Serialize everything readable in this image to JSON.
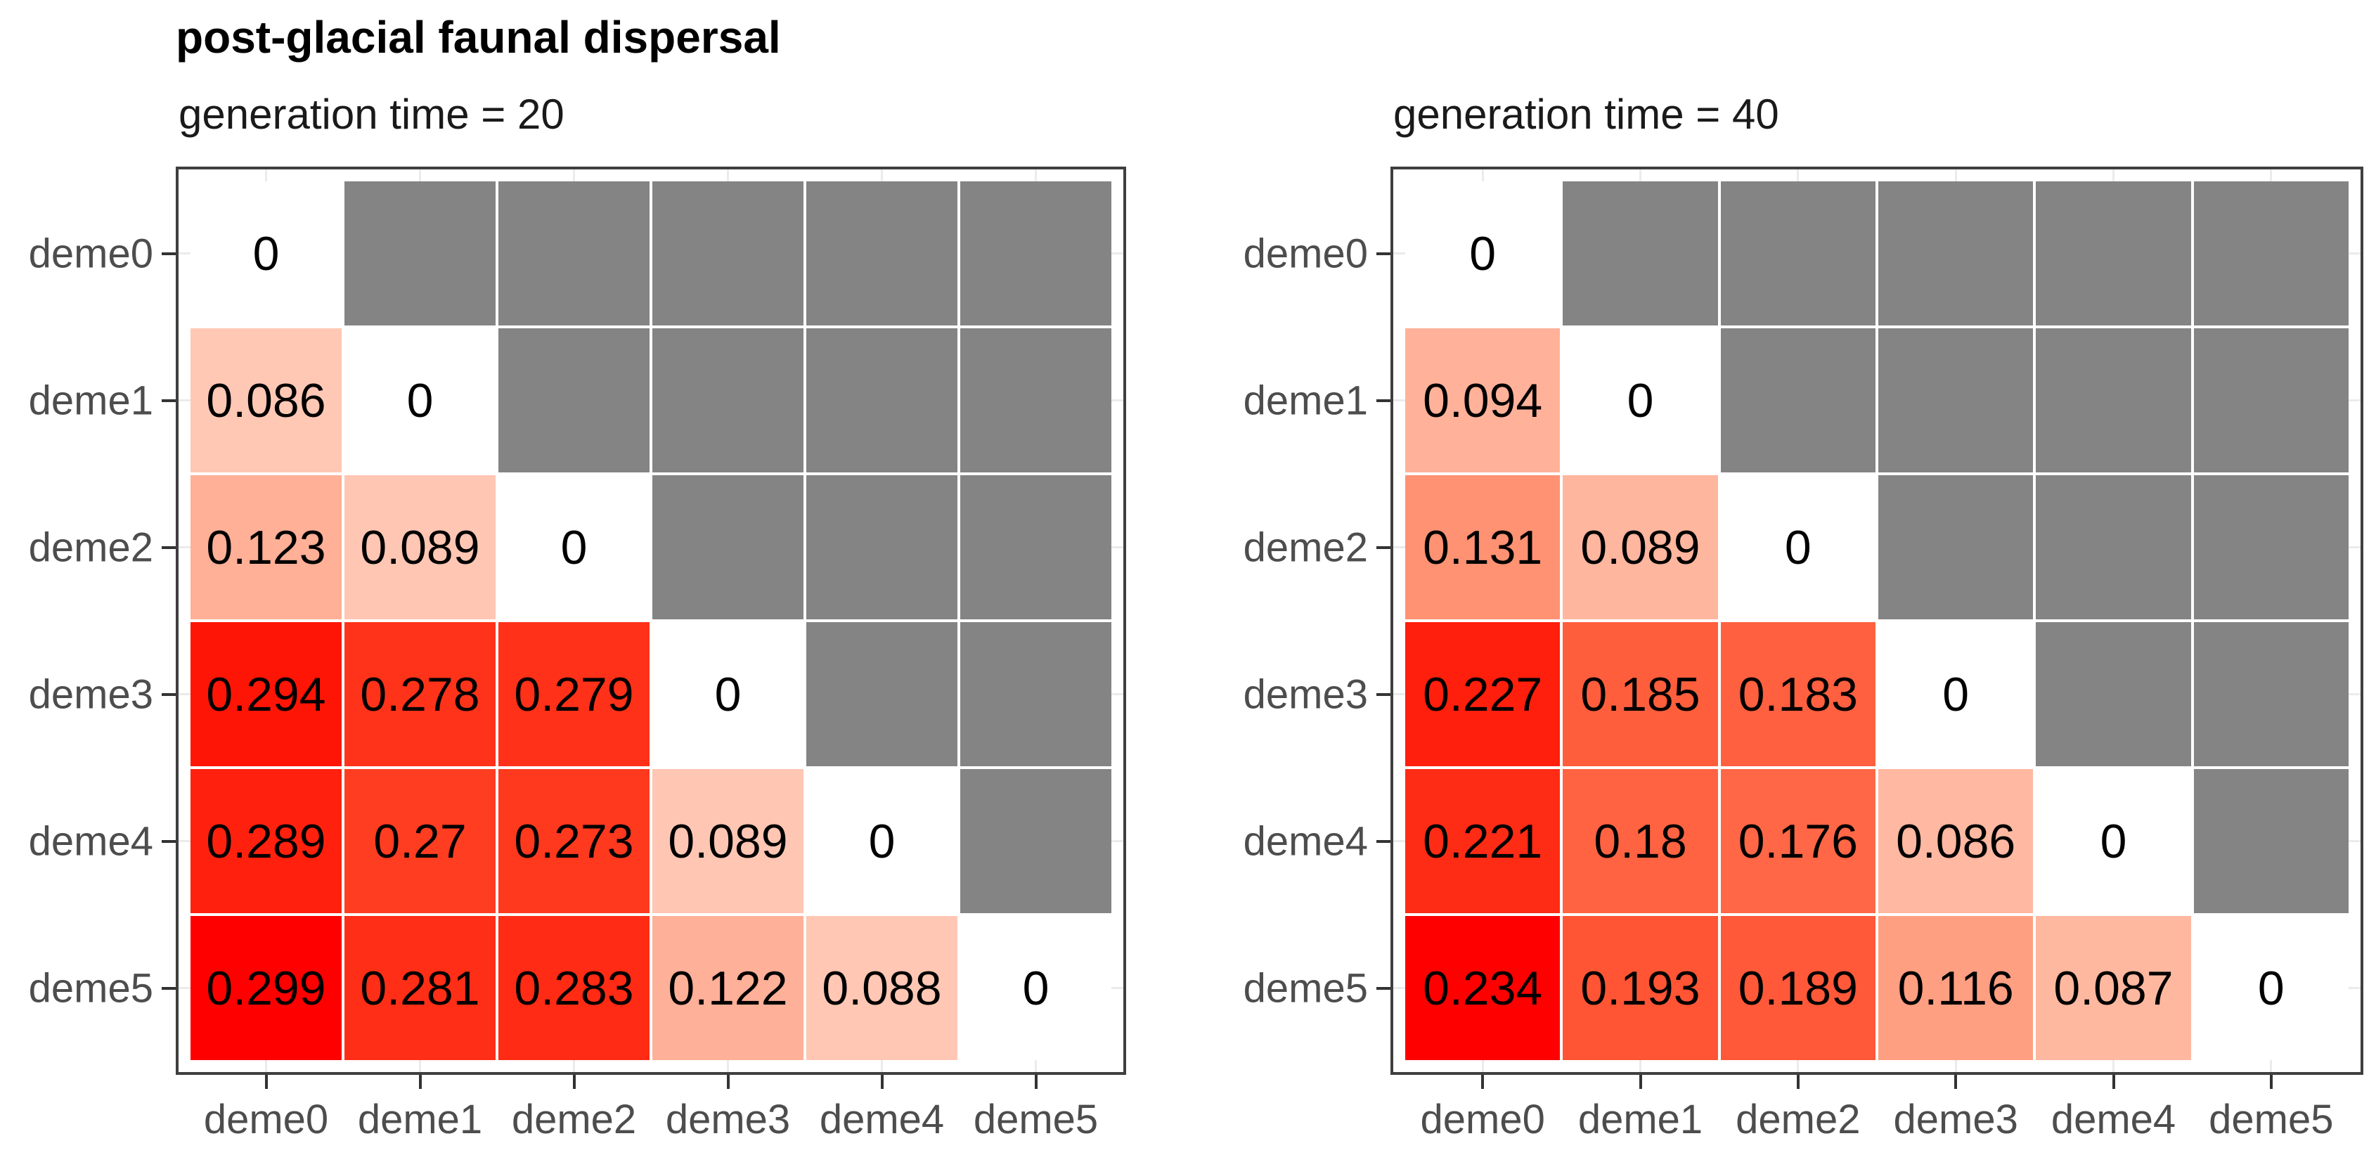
{
  "chart_data": {
    "type": "heatmap",
    "title": "post-glacial faunal dispersal",
    "description_of_layout": "two faceted lower-triangular pairwise matrices, diagonal = 0, upper triangle NA gray",
    "categories": [
      "deme0",
      "deme1",
      "deme2",
      "deme3",
      "deme4",
      "deme5"
    ],
    "panels": [
      {
        "subtitle": "generation time = 20",
        "matrix": [
          [
            0,
            null,
            null,
            null,
            null,
            null
          ],
          [
            0.086,
            0,
            null,
            null,
            null,
            null
          ],
          [
            0.123,
            0.089,
            0,
            null,
            null,
            null
          ],
          [
            0.294,
            0.278,
            0.279,
            0,
            null,
            null
          ],
          [
            0.289,
            0.27,
            0.273,
            0.089,
            0,
            null
          ],
          [
            0.299,
            0.281,
            0.283,
            0.122,
            0.088,
            0
          ]
        ]
      },
      {
        "subtitle": "generation time = 40",
        "matrix": [
          [
            0,
            null,
            null,
            null,
            null,
            null
          ],
          [
            0.094,
            0,
            null,
            null,
            null,
            null
          ],
          [
            0.131,
            0.089,
            0,
            null,
            null,
            null
          ],
          [
            0.227,
            0.185,
            0.183,
            0,
            null,
            null
          ],
          [
            0.221,
            0.18,
            0.176,
            0.086,
            0,
            null
          ],
          [
            0.234,
            0.193,
            0.189,
            0.116,
            0.087,
            0
          ]
        ]
      }
    ],
    "colorscale": {
      "low": "#FFFFFF",
      "high": "#FF0000",
      "na": "#848484",
      "interpolation": "lab",
      "per_panel_normalization": true
    },
    "style_colors": {
      "panel_border": "#3f3f3f",
      "axis_text": "#4d4d4d",
      "tick": "#333333",
      "minor_gridline": "#ebebeb",
      "cell_gridline": "#ffffff"
    }
  }
}
